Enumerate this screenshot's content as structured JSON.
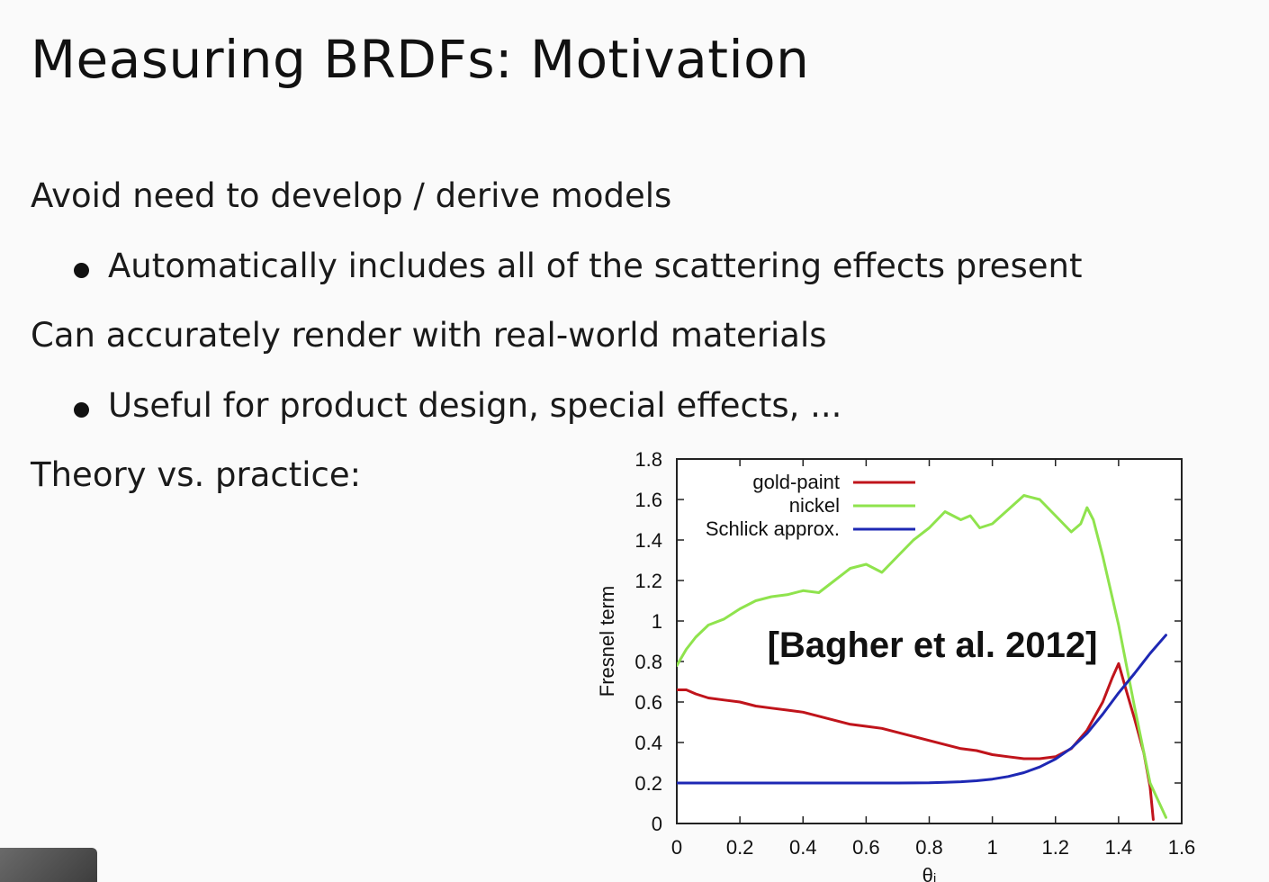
{
  "slide": {
    "title": "Measuring BRDFs: Motivation",
    "lines": [
      {
        "level": 1,
        "text": "Avoid need to develop / derive models"
      },
      {
        "level": 2,
        "text": "Automatically includes all of the scattering effects present"
      },
      {
        "level": 1,
        "text": "Can accurately render with real-world materials"
      },
      {
        "level": 2,
        "text": "Useful for product design, special effects, ..."
      },
      {
        "level": 1,
        "text": "Theory vs. practice:"
      }
    ]
  },
  "chart_data": {
    "type": "line",
    "title": "",
    "xlabel": "θᵢ",
    "ylabel": "Fresnel term",
    "xlim": [
      0,
      1.6
    ],
    "ylim": [
      0,
      1.8
    ],
    "xticks": [
      0,
      0.2,
      0.4,
      0.6,
      0.8,
      1,
      1.2,
      1.4,
      1.6
    ],
    "xtick_labels": [
      "0",
      "0.2",
      "0.4",
      "0.6",
      "0.8",
      "1",
      "1.2",
      "1.4",
      "1.6"
    ],
    "yticks": [
      0,
      0.2,
      0.4,
      0.6,
      0.8,
      1,
      1.2,
      1.4,
      1.6,
      1.8
    ],
    "ytick_labels": [
      "0",
      "0.2",
      "0.4",
      "0.6",
      "0.8",
      "1",
      "1.2",
      "1.4",
      "1.6",
      "1.8"
    ],
    "legend_position": "top-left",
    "annotation": "[Bagher et al. 2012]",
    "series": [
      {
        "name": "gold-paint",
        "color": "#c0141b",
        "x": [
          0,
          0.03,
          0.06,
          0.1,
          0.15,
          0.2,
          0.25,
          0.3,
          0.35,
          0.4,
          0.45,
          0.5,
          0.55,
          0.6,
          0.65,
          0.7,
          0.75,
          0.8,
          0.85,
          0.9,
          0.95,
          1.0,
          1.05,
          1.1,
          1.15,
          1.2,
          1.25,
          1.3,
          1.35,
          1.38,
          1.4,
          1.42,
          1.45,
          1.48,
          1.5,
          1.51
        ],
        "y": [
          0.66,
          0.66,
          0.64,
          0.62,
          0.61,
          0.6,
          0.58,
          0.57,
          0.56,
          0.55,
          0.53,
          0.51,
          0.49,
          0.48,
          0.47,
          0.45,
          0.43,
          0.41,
          0.39,
          0.37,
          0.36,
          0.34,
          0.33,
          0.32,
          0.32,
          0.33,
          0.37,
          0.46,
          0.6,
          0.72,
          0.79,
          0.68,
          0.52,
          0.35,
          0.18,
          0.02
        ]
      },
      {
        "name": "nickel",
        "color": "#8fe34d",
        "x": [
          0,
          0.03,
          0.06,
          0.1,
          0.15,
          0.2,
          0.25,
          0.3,
          0.35,
          0.4,
          0.45,
          0.5,
          0.55,
          0.6,
          0.65,
          0.7,
          0.75,
          0.8,
          0.85,
          0.9,
          0.93,
          0.96,
          1.0,
          1.05,
          1.1,
          1.15,
          1.2,
          1.25,
          1.28,
          1.3,
          1.32,
          1.35,
          1.4,
          1.45,
          1.5,
          1.55
        ],
        "y": [
          0.78,
          0.86,
          0.92,
          0.98,
          1.01,
          1.06,
          1.1,
          1.12,
          1.13,
          1.15,
          1.14,
          1.2,
          1.26,
          1.28,
          1.24,
          1.32,
          1.4,
          1.46,
          1.54,
          1.5,
          1.52,
          1.46,
          1.48,
          1.55,
          1.62,
          1.6,
          1.52,
          1.44,
          1.48,
          1.56,
          1.5,
          1.32,
          0.98,
          0.58,
          0.2,
          0.03
        ]
      },
      {
        "name": "Schlick approx.",
        "color": "#1e28b4",
        "x": [
          0,
          0.1,
          0.2,
          0.3,
          0.4,
          0.5,
          0.6,
          0.7,
          0.8,
          0.85,
          0.9,
          0.95,
          1.0,
          1.05,
          1.1,
          1.15,
          1.2,
          1.25,
          1.3,
          1.35,
          1.4,
          1.45,
          1.5,
          1.55
        ],
        "y": [
          0.2,
          0.2,
          0.2,
          0.2,
          0.2,
          0.2,
          0.2,
          0.2,
          0.201,
          0.203,
          0.206,
          0.211,
          0.219,
          0.232,
          0.251,
          0.279,
          0.318,
          0.372,
          0.445,
          0.54,
          0.645,
          0.74,
          0.84,
          0.93
        ]
      }
    ]
  }
}
